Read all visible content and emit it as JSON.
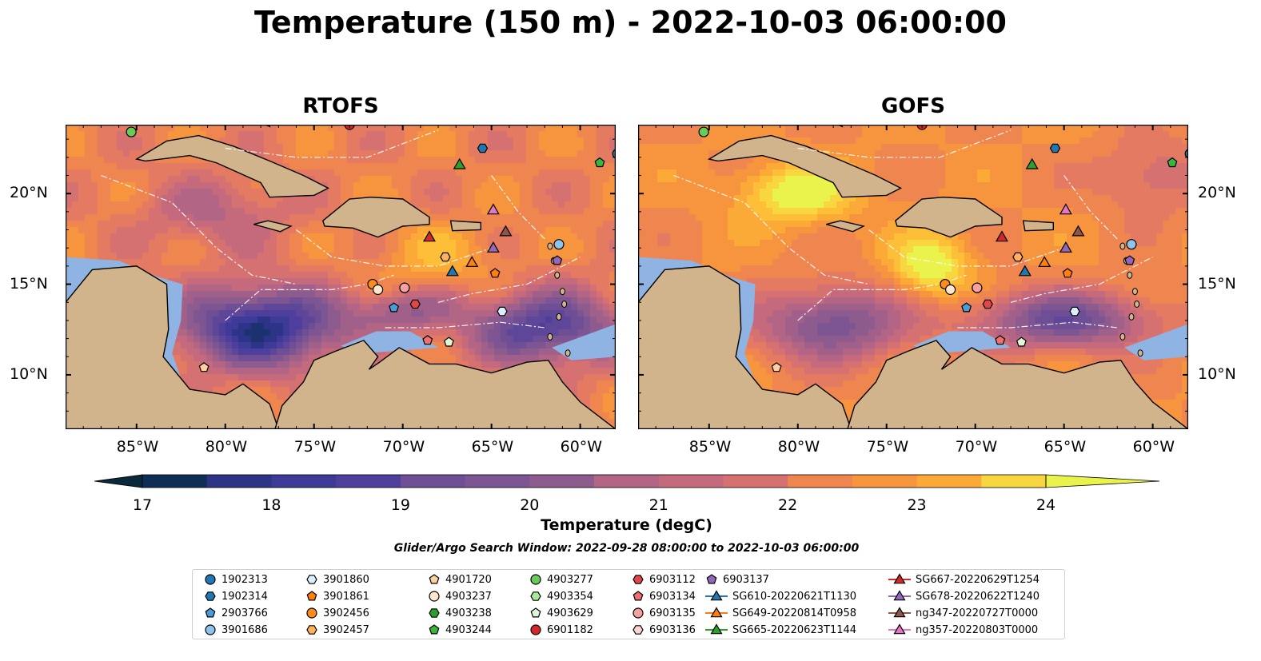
{
  "title": "Temperature (150 m) - 2022-10-03 06:00:00",
  "panels": [
    {
      "title": "RTOFS",
      "model": "rtofs"
    },
    {
      "title": "GOFS",
      "model": "gofs"
    }
  ],
  "axes": {
    "lon_ticks": [
      "85°W",
      "80°W",
      "75°W",
      "70°W",
      "65°W",
      "60°W"
    ],
    "lat_ticks": [
      "20°N",
      "15°N",
      "10°N"
    ],
    "lon_values": [
      -85,
      -80,
      -75,
      -70,
      -65,
      -60
    ],
    "lat_values": [
      20,
      15,
      10
    ],
    "lon_range": [
      -89,
      -58
    ],
    "lat_range": [
      7,
      23.8
    ]
  },
  "colorbar": {
    "label": "Temperature (degC)",
    "ticks": [
      "17",
      "18",
      "19",
      "20",
      "21",
      "22",
      "23",
      "24"
    ],
    "min": 16.5,
    "max": 24.5,
    "extend": "both",
    "colormap": [
      "#0a2a3c",
      "#0f2e55",
      "#1c3170",
      "#2c3488",
      "#3d3a98",
      "#4e3f9c",
      "#5e4699",
      "#6e4e95",
      "#7e5593",
      "#8e5b8f",
      "#a0608a",
      "#b26584",
      "#c46a7c",
      "#d57171",
      "#e47a62",
      "#ef8650",
      "#f7953f",
      "#fbaa37",
      "#fcbf37",
      "#f8d640",
      "#eaf24c"
    ]
  },
  "search_window": "Glider/Argo Search Window: 2022-09-28 08:00:00 to 2022-10-03 06:00:00",
  "colors": {
    "land": "#d2b48c",
    "shelf": "#8fb4e3",
    "coast": "#000000",
    "eez": "#ffffff"
  },
  "legend": [
    {
      "label": "1902313",
      "marker": "circle",
      "color": "#1f77b4"
    },
    {
      "label": "1902314",
      "marker": "hexagon",
      "color": "#1f77b4"
    },
    {
      "label": "2903766",
      "marker": "pentagon",
      "color": "#4a9bd6"
    },
    {
      "label": "3901686",
      "marker": "circle",
      "color": "#8ec4ec"
    },
    {
      "label": "3901860",
      "marker": "hexagon",
      "color": "#dbeefc"
    },
    {
      "label": "3901861",
      "marker": "pentagon",
      "color": "#ff7f0e"
    },
    {
      "label": "3902456",
      "marker": "circle",
      "color": "#ff8c1a"
    },
    {
      "label": "3902457",
      "marker": "hexagon",
      "color": "#ffb25b"
    },
    {
      "label": "4901720",
      "marker": "pentagon",
      "color": "#ffd0a0"
    },
    {
      "label": "4903237",
      "marker": "circle",
      "color": "#ffe8cc"
    },
    {
      "label": "4903238",
      "marker": "hexagon",
      "color": "#2ca02c"
    },
    {
      "label": "4903244",
      "marker": "pentagon",
      "color": "#3cb53c"
    },
    {
      "label": "4903277",
      "marker": "circle",
      "color": "#66cc55"
    },
    {
      "label": "4903354",
      "marker": "hexagon",
      "color": "#a8e89a"
    },
    {
      "label": "4903629",
      "marker": "pentagon",
      "color": "#dff7d6"
    },
    {
      "label": "6901182",
      "marker": "circle",
      "color": "#d62728"
    },
    {
      "label": "6903112",
      "marker": "hexagon",
      "color": "#e0464a"
    },
    {
      "label": "6903134",
      "marker": "pentagon",
      "color": "#f07070"
    },
    {
      "label": "6903135",
      "marker": "circle",
      "color": "#f7a0a0"
    },
    {
      "label": "6903136",
      "marker": "hexagon",
      "color": "#fcd3d3"
    },
    {
      "label": "6903137",
      "marker": "pentagon",
      "color": "#9467bd"
    },
    {
      "label": "SG610-20220621T1130",
      "marker": "triangle",
      "color": "#1f77b4",
      "line": true
    },
    {
      "label": "SG649-20220814T0958",
      "marker": "triangle",
      "color": "#ff7f0e",
      "line": true
    },
    {
      "label": "SG665-20220623T1144",
      "marker": "triangle",
      "color": "#2ca02c",
      "line": true
    },
    {
      "label": "SG667-20220629T1254",
      "marker": "triangle",
      "color": "#d62728",
      "line": true
    },
    {
      "label": "SG678-20220622T1240",
      "marker": "triangle",
      "color": "#9467bd",
      "line": true
    },
    {
      "label": "ng347-20220727T0000",
      "marker": "triangle",
      "color": "#8c564b",
      "line": true
    },
    {
      "label": "ng357-20220803T0000",
      "marker": "triangle",
      "color": "#e377c2",
      "line": true
    }
  ],
  "platforms": [
    {
      "id": "4903277",
      "lon": -85.3,
      "lat": 23.4
    },
    {
      "id": "6901182",
      "lon": -73.0,
      "lat": 23.8
    },
    {
      "id": "1902314",
      "lon": -65.5,
      "lat": 22.5
    },
    {
      "id": "1902313",
      "lon": -57.9,
      "lat": 22.2
    },
    {
      "id": "4903244",
      "lon": -58.9,
      "lat": 21.7
    },
    {
      "id": "SG665-20220623T1144",
      "lon": -66.8,
      "lat": 21.6
    },
    {
      "id": "ng357-20220803T0000",
      "lon": -64.9,
      "lat": 19.1
    },
    {
      "id": "ng347-20220727T0000",
      "lon": -64.2,
      "lat": 17.9
    },
    {
      "id": "SG667-20220629T1254",
      "lon": -68.5,
      "lat": 17.6
    },
    {
      "id": "SG678-20220622T1240",
      "lon": -64.9,
      "lat": 17.0
    },
    {
      "id": "3901686",
      "lon": -61.2,
      "lat": 17.2
    },
    {
      "id": "6903137",
      "lon": -61.3,
      "lat": 16.3
    },
    {
      "id": "3902457",
      "lon": -67.6,
      "lat": 16.5
    },
    {
      "id": "SG649-20220814T0958",
      "lon": -66.1,
      "lat": 16.2
    },
    {
      "id": "SG610-20220621T1130",
      "lon": -67.2,
      "lat": 15.7
    },
    {
      "id": "3901861",
      "lon": -64.8,
      "lat": 15.6
    },
    {
      "id": "3902456",
      "lon": -71.7,
      "lat": 15.0
    },
    {
      "id": "4903237",
      "lon": -71.4,
      "lat": 14.7
    },
    {
      "id": "6903135",
      "lon": -69.9,
      "lat": 14.8
    },
    {
      "id": "6903112",
      "lon": -69.3,
      "lat": 13.9
    },
    {
      "id": "2903766",
      "lon": -70.5,
      "lat": 13.7
    },
    {
      "id": "3901860",
      "lon": -64.4,
      "lat": 13.5
    },
    {
      "id": "6903134",
      "lon": -68.6,
      "lat": 11.9
    },
    {
      "id": "4903629",
      "lon": -67.4,
      "lat": 11.8
    },
    {
      "id": "4901720",
      "lon": -81.2,
      "lat": 10.4
    }
  ]
}
